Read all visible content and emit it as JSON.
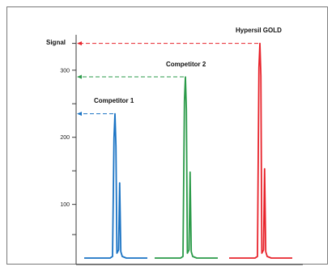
{
  "chart_data": {
    "type": "line",
    "title": "",
    "xlabel": "",
    "ylabel": "Signal",
    "ylim": [
      20,
      360
    ],
    "yticks": [
      {
        "value": 340,
        "label": ""
      },
      {
        "value": 300,
        "label": "300"
      },
      {
        "value": 250,
        "label": ""
      },
      {
        "value": 200,
        "label": "200"
      },
      {
        "value": 150,
        "label": ""
      },
      {
        "value": 100,
        "label": "100"
      },
      {
        "value": 55,
        "label": ""
      }
    ],
    "grid": false,
    "legend": "none",
    "series": [
      {
        "name": "Competitor 1",
        "color": "#1a73c4",
        "peak": 235,
        "shoulder": 132
      },
      {
        "name": "Competitor 2",
        "color": "#2a9a48",
        "peak": 290,
        "shoulder": 148
      },
      {
        "name": "Hypersil GOLD",
        "color": "#e8242c",
        "peak": 340,
        "shoulder": 153
      }
    ]
  }
}
